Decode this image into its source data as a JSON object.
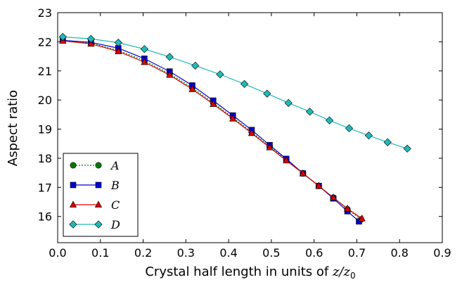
{
  "chart_data": {
    "type": "line",
    "title": "",
    "xlabel": "Crystal half length in units of ",
    "xlabel_math": "z/z",
    "xlabel_sub": "0",
    "ylabel": "Aspect ratio",
    "xlim": [
      0.0,
      0.9
    ],
    "ylim": [
      15.1,
      23.0
    ],
    "xticks": [
      0.0,
      0.1,
      0.2,
      0.3,
      0.4,
      0.5,
      0.6,
      0.7,
      0.8,
      0.9
    ],
    "xtick_labels": [
      "0.0",
      "0.1",
      "0.2",
      "0.3",
      "0.4",
      "0.5",
      "0.6",
      "0.7",
      "0.8",
      "0.9"
    ],
    "yticks": [
      16,
      17,
      18,
      19,
      20,
      21,
      22,
      23
    ],
    "ytick_labels": [
      "16",
      "17",
      "18",
      "19",
      "20",
      "21",
      "22",
      "23"
    ],
    "grid": false,
    "legend": "bottom-left",
    "series": [
      {
        "name": "A",
        "color": "#007a00",
        "marker": "circle",
        "line": "dotted",
        "x": [
          0.012,
          0.078,
          0.142,
          0.203,
          0.262,
          0.315,
          0.364,
          0.41,
          0.454,
          0.496,
          0.535,
          0.574,
          0.611,
          0.645,
          0.678,
          0.71
        ],
        "y": [
          22.05,
          21.95,
          21.7,
          21.35,
          20.9,
          20.42,
          19.9,
          19.4,
          18.9,
          18.4,
          17.95,
          17.48,
          17.05,
          16.65,
          16.25,
          15.9
        ]
      },
      {
        "name": "B",
        "color": "#0000cc",
        "marker": "square",
        "line": "solid",
        "x": [
          0.012,
          0.078,
          0.142,
          0.203,
          0.262,
          0.315,
          0.364,
          0.41,
          0.454,
          0.496,
          0.535,
          0.574,
          0.611,
          0.645,
          0.678,
          0.705
        ],
        "y": [
          22.05,
          21.98,
          21.78,
          21.42,
          20.98,
          20.5,
          19.98,
          19.47,
          18.97,
          18.45,
          17.98,
          17.48,
          17.05,
          16.62,
          16.18,
          15.83
        ]
      },
      {
        "name": "C",
        "color": "#dd0000",
        "marker": "triangle",
        "line": "solid",
        "x": [
          0.012,
          0.078,
          0.142,
          0.203,
          0.262,
          0.315,
          0.364,
          0.41,
          0.454,
          0.496,
          0.535,
          0.574,
          0.611,
          0.645,
          0.678,
          0.712
        ],
        "y": [
          22.03,
          21.93,
          21.67,
          21.3,
          20.86,
          20.37,
          19.86,
          19.36,
          18.86,
          18.37,
          17.92,
          17.48,
          17.05,
          16.65,
          16.27,
          15.93
        ]
      },
      {
        "name": "D",
        "color": "#22b8b8",
        "marker": "diamond",
        "line": "solid",
        "x": [
          0.012,
          0.078,
          0.142,
          0.203,
          0.262,
          0.322,
          0.38,
          0.437,
          0.49,
          0.54,
          0.59,
          0.636,
          0.682,
          0.728,
          0.772,
          0.818
        ],
        "y": [
          22.17,
          22.1,
          21.97,
          21.75,
          21.48,
          21.18,
          20.88,
          20.55,
          20.22,
          19.9,
          19.6,
          19.3,
          19.03,
          18.78,
          18.55,
          18.33
        ]
      }
    ]
  }
}
